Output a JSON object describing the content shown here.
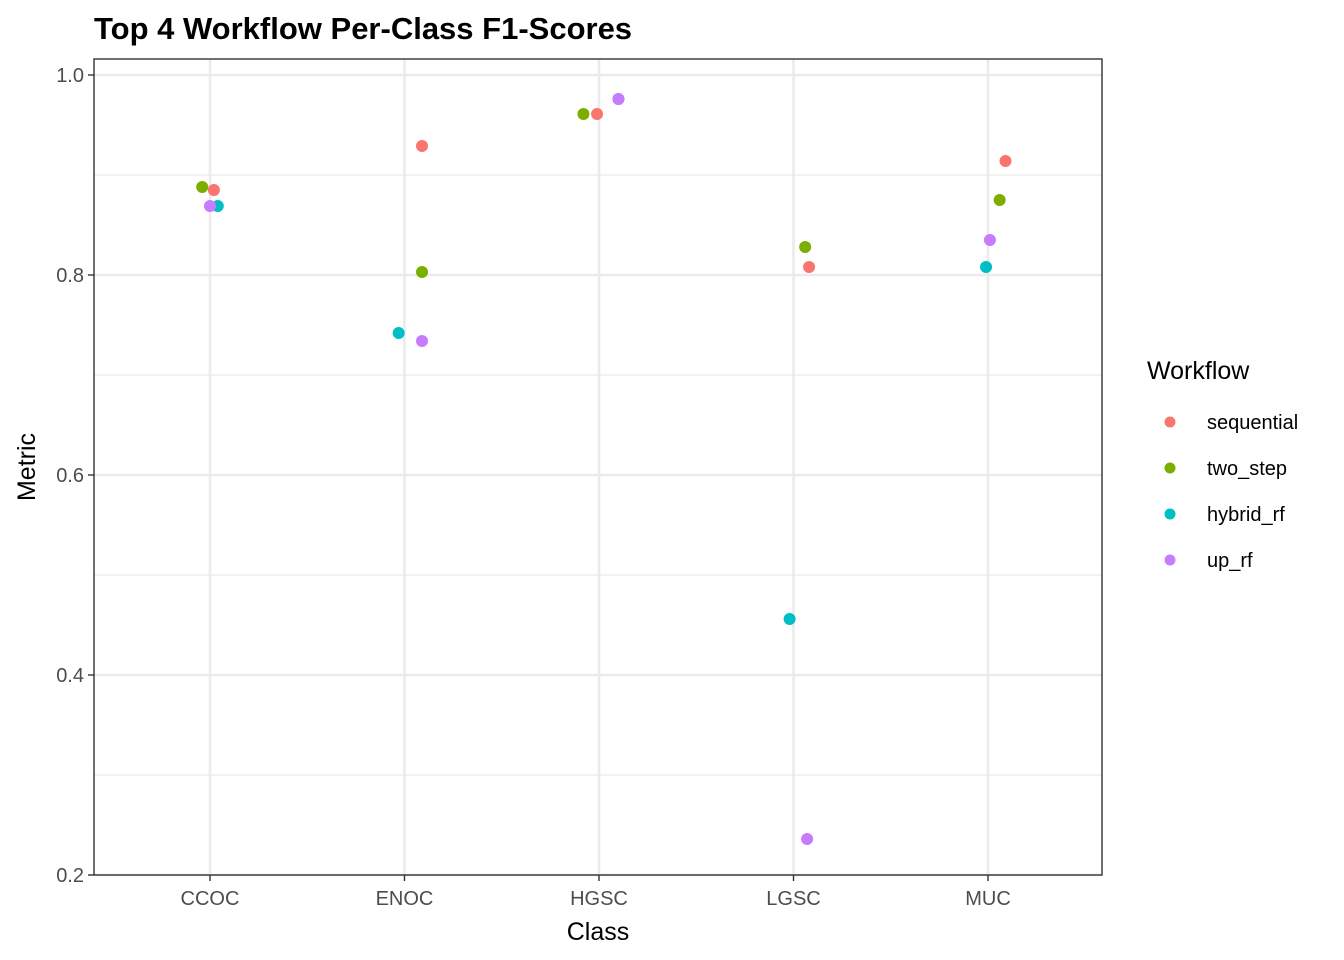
{
  "chart_data": {
    "type": "scatter",
    "title": "Top 4 Workflow Per-Class F1-Scores",
    "xlabel": "Class",
    "ylabel": "Metric",
    "categories": [
      "CCOC",
      "ENOC",
      "HGSC",
      "LGSC",
      "MUC"
    ],
    "ylim": [
      0.2,
      1.0
    ],
    "yticks": [
      0.2,
      0.4,
      0.6,
      0.8,
      1.0
    ],
    "ytick_labels": [
      "0.2",
      "0.4",
      "0.6",
      "0.8",
      "1.0"
    ],
    "grid": true,
    "legend": {
      "title": "Workflow",
      "position": "right"
    },
    "series": [
      {
        "name": "sequential",
        "color": "#F8766D",
        "values": [
          0.885,
          0.929,
          0.961,
          0.808,
          0.914
        ],
        "jitter": [
          0.02,
          0.09,
          -0.01,
          0.08,
          0.09
        ]
      },
      {
        "name": "two_step",
        "color": "#7CAE00",
        "values": [
          0.888,
          0.803,
          0.961,
          0.828,
          0.875
        ],
        "jitter": [
          -0.04,
          0.09,
          -0.08,
          0.06,
          0.06
        ]
      },
      {
        "name": "hybrid_rf",
        "color": "#00BFC4",
        "values": [
          0.869,
          0.742,
          0.976,
          0.456,
          0.808
        ],
        "jitter": [
          0.04,
          -0.03,
          0.1,
          -0.02,
          -0.01
        ]
      },
      {
        "name": "up_rf",
        "color": "#C77CFF",
        "values": [
          0.869,
          0.734,
          0.976,
          0.236,
          0.835
        ],
        "jitter": [
          0.0,
          0.09,
          0.1,
          0.07,
          0.01
        ]
      }
    ]
  }
}
